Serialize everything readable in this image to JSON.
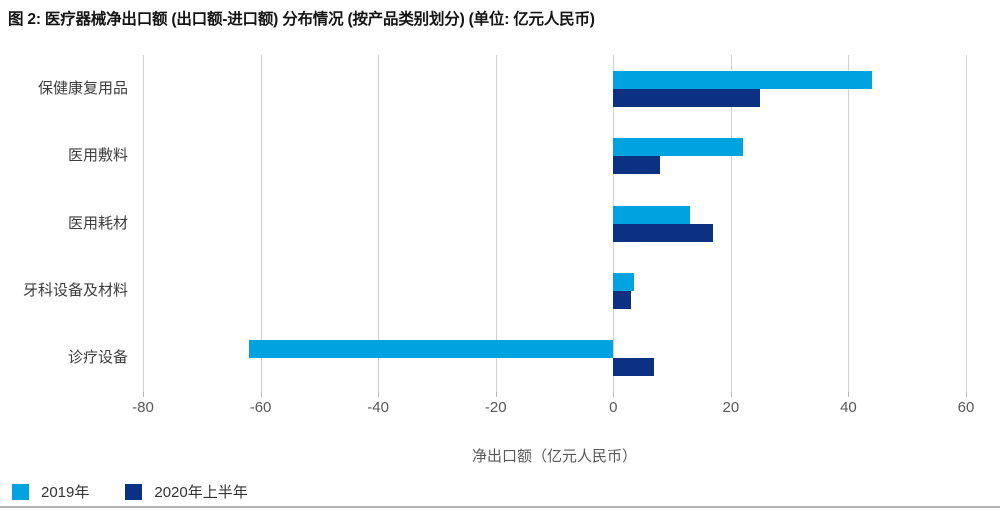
{
  "title": "图 2: 医疗器械净出口额 (出口额-进口额) 分布情况 (按产品类别划分) (单位: 亿元人民币)",
  "colors": {
    "series_2019": "#00a3e0",
    "series_2020h1": "#0c3183",
    "gridline": "#d2d2d2",
    "tick_label": "#595959",
    "category_label": "#3d3d3d",
    "axis_label": "#595959",
    "bottom_border": "#b3b3b3"
  },
  "chart_data": {
    "type": "bar",
    "orientation": "horizontal",
    "title": "图 2: 医疗器械净出口额 (出口额-进口额) 分布情况 (按产品类别划分) (单位: 亿元人民币)",
    "categories": [
      "保健康复用品",
      "医用敷料",
      "医用耗材",
      "牙科设备及材料",
      "诊疗设备"
    ],
    "series": [
      {
        "name": "2019年",
        "color_key": "series_2019",
        "values": [
          44,
          22,
          13,
          3.5,
          -62
        ]
      },
      {
        "name": "2020年上半年",
        "color_key": "series_2020h1",
        "values": [
          25,
          8,
          17,
          3,
          7
        ]
      }
    ],
    "xlabel": "净出口额（亿元人民币）",
    "ylabel": "",
    "xlim": [
      -80,
      60
    ],
    "xticks": [
      -80,
      -60,
      -40,
      -20,
      0,
      20,
      40,
      60
    ],
    "grid": true,
    "legend_position": "bottom-left"
  }
}
